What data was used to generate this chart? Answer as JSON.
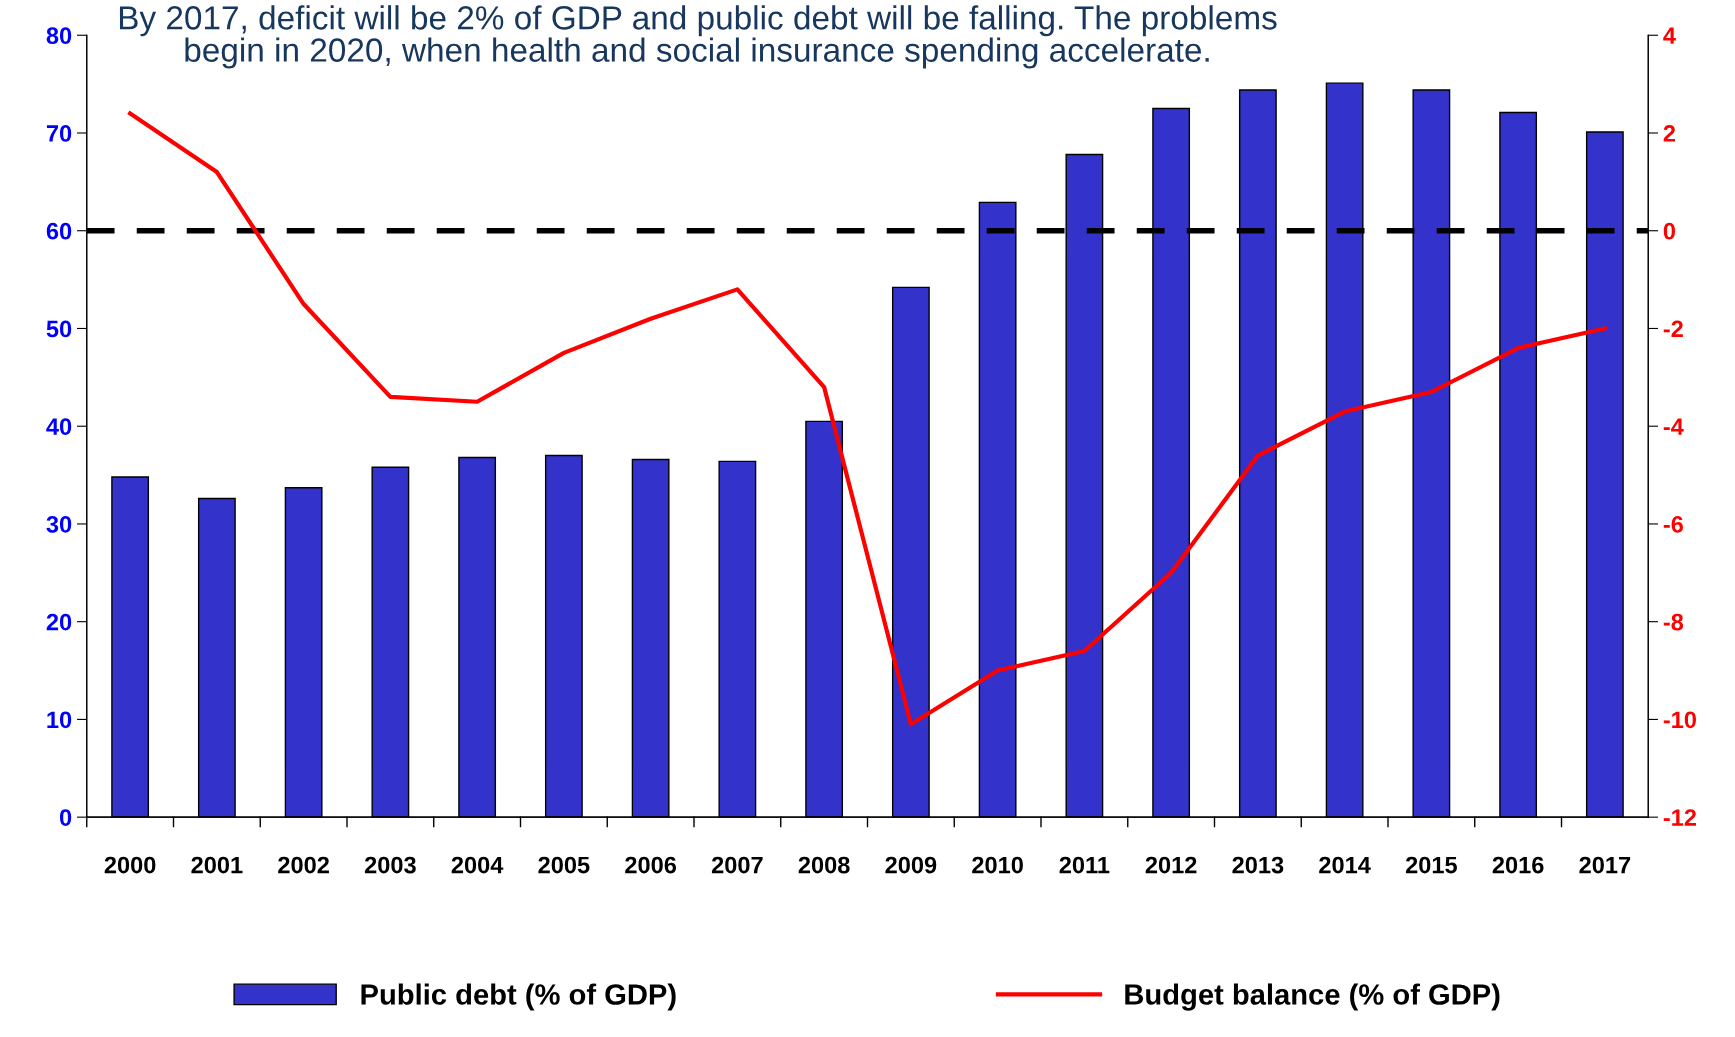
{
  "chart_data": {
    "type": "bar",
    "title": "By 2017, deficit will be 2% of GDP and public debt will be falling. The problems begin in 2020, when health and social insurance spending accelerate.",
    "categories": [
      "2000",
      "2001",
      "2002",
      "2003",
      "2004",
      "2005",
      "2006",
      "2007",
      "2008",
      "2009",
      "2010",
      "2011",
      "2012",
      "2013",
      "2014",
      "2015",
      "2016",
      "2017"
    ],
    "series": [
      {
        "name": "Public debt (% of GDP)",
        "color": "#3333cc",
        "values": [
          34.8,
          32.6,
          33.7,
          35.8,
          36.8,
          37.0,
          36.6,
          36.4,
          40.5,
          54.2,
          62.9,
          67.8,
          72.5,
          74.4,
          75.1,
          74.4,
          72.1,
          70.1
        ]
      },
      {
        "name": "Budget balance (% of GDP)",
        "type": "line",
        "axis": "y2",
        "color": "#ff0000",
        "values": [
          2.4,
          1.2,
          -1.5,
          -3.4,
          -3.5,
          -2.5,
          -1.8,
          -1.2,
          -3.2,
          -10.1,
          -9.0,
          -8.6,
          -7.0,
          -4.6,
          -3.7,
          -3.3,
          -2.4,
          -2.0
        ]
      }
    ],
    "ylim": [
      0,
      80
    ],
    "yticks": [
      0,
      10,
      20,
      30,
      40,
      50,
      60,
      70,
      80
    ],
    "y2lim": [
      -12,
      4
    ],
    "y2ticks": [
      -12,
      -10,
      -8,
      -6,
      -4,
      -2,
      0,
      2,
      4
    ],
    "ref_lines": [
      {
        "axis": "y2",
        "value": 0,
        "color": "#000000",
        "line_style": "dashed"
      }
    ],
    "grid": false,
    "legend": "bottom"
  }
}
